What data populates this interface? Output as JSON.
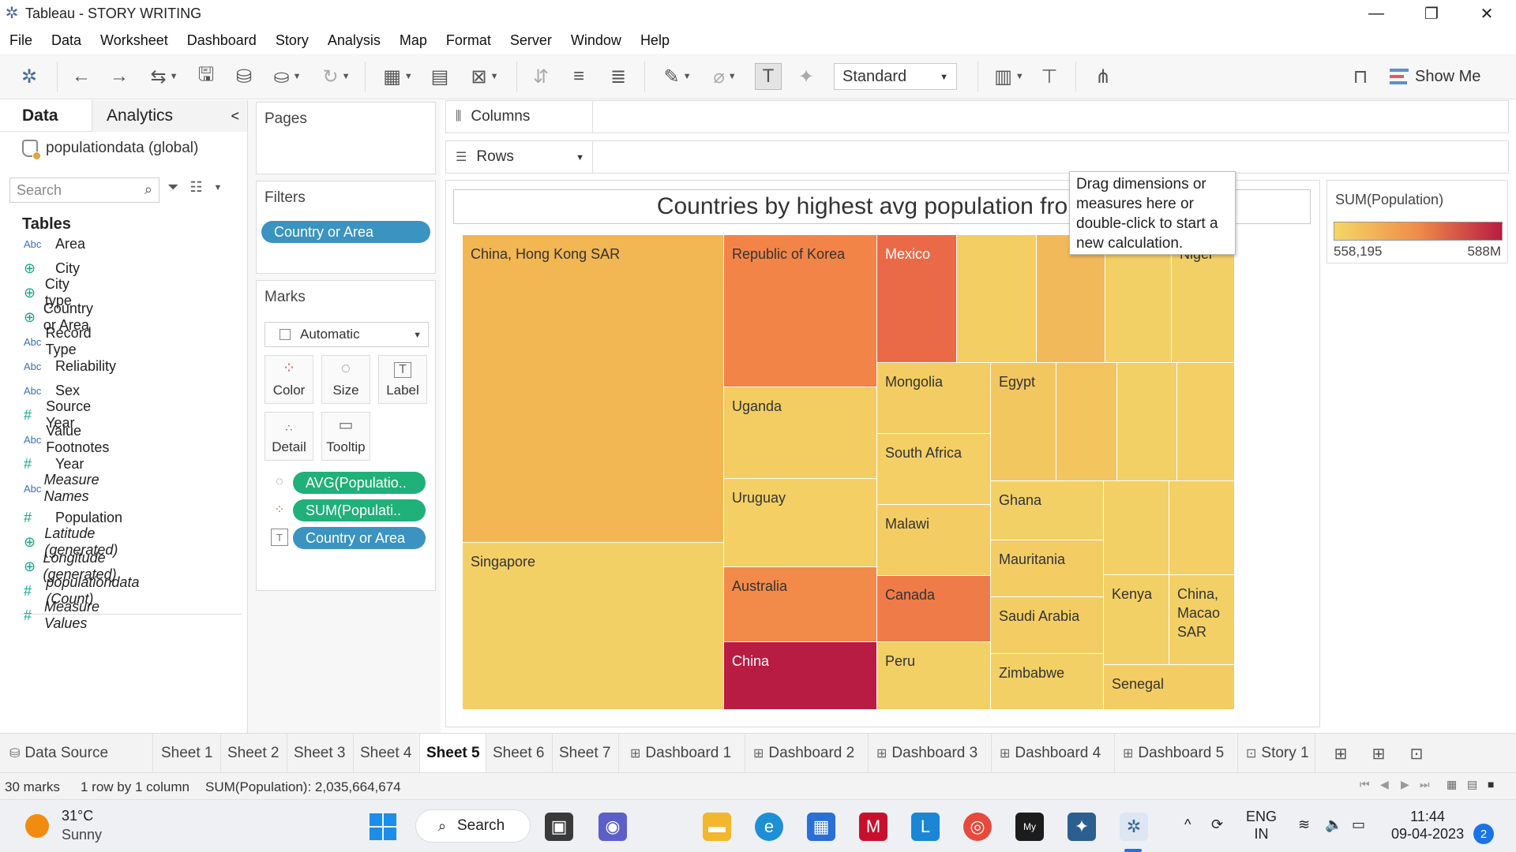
{
  "window": {
    "title": "Tableau - STORY WRITING",
    "minimize": "—",
    "maximize": "❐",
    "close": "✕"
  },
  "menu": [
    "File",
    "Data",
    "Worksheet",
    "Dashboard",
    "Story",
    "Analysis",
    "Map",
    "Format",
    "Server",
    "Window",
    "Help"
  ],
  "toolbar": {
    "fit_value": "Standard",
    "show_me": "Show Me"
  },
  "data_pane": {
    "tabs": [
      "Data",
      "Analytics"
    ],
    "collapse_icon": "<",
    "datasource": "populationdata (global)",
    "search_placeholder": "Search",
    "tables_heading": "Tables",
    "fields": [
      {
        "type": "Abc",
        "name": "Area"
      },
      {
        "type": "geo",
        "name": "City"
      },
      {
        "type": "geo",
        "name": "City type"
      },
      {
        "type": "geo",
        "name": "Country or Area"
      },
      {
        "type": "Abc",
        "name": "Record Type"
      },
      {
        "type": "Abc",
        "name": "Reliability"
      },
      {
        "type": "Abc",
        "name": "Sex"
      },
      {
        "type": "#",
        "name": "Source Year"
      },
      {
        "type": "Abc",
        "name": "Value Footnotes"
      },
      {
        "type": "#",
        "name": "Year"
      },
      {
        "type": "Abc",
        "name": "Measure Names",
        "italic": true
      },
      {
        "type": "#",
        "name": "Population"
      },
      {
        "type": "geo",
        "name": "Latitude (generated)",
        "italic": true
      },
      {
        "type": "geo",
        "name": "Longitude (generated)",
        "italic": true
      },
      {
        "type": "#",
        "name": "populationdata (Count)",
        "italic": true
      },
      {
        "type": "#",
        "name": "Measure Values",
        "italic": true
      }
    ]
  },
  "cards": {
    "pages": "Pages",
    "filters": "Filters",
    "filter_pill": "Country or Area",
    "marks": "Marks",
    "mark_type": "Automatic",
    "mark_buttons": [
      "Color",
      "Size",
      "Label",
      "Detail",
      "Tooltip"
    ],
    "mark_pills": [
      "AVG(Populatio..",
      "SUM(Populati..",
      "Country or Area"
    ]
  },
  "shelves": {
    "columns": "Columns",
    "rows": "Rows"
  },
  "viz": {
    "title": "Countries by highest avg population from 2",
    "tooltip": "Drag dimensions or measures here or double-click to start a new calculation.",
    "labels": {
      "hk": "China, Hong Kong SAR",
      "korea": "Republic of Korea",
      "mexico": "Mexico",
      "niger": "Niger",
      "singapore": "Singapore",
      "uganda": "Uganda",
      "uruguay": "Uruguay",
      "australia": "Australia",
      "china": "China",
      "mongolia": "Mongolia",
      "south_africa": "South Africa",
      "malawi": "Malawi",
      "canada": "Canada",
      "peru": "Peru",
      "egypt": "Egypt",
      "ghana": "Ghana",
      "mauritania": "Mauritania",
      "saudi": "Saudi Arabia",
      "zimbabwe": "Zimbabwe",
      "kenya": "Kenya",
      "macao": "China,\nMacao\nSAR",
      "senegal": "Senegal"
    },
    "colors": {
      "low": "#f5d766",
      "mid": "#ef8c4a",
      "high": "#b81c42"
    }
  },
  "legend": {
    "title": "SUM(Population)",
    "min": "558,195",
    "max": "588M"
  },
  "sheet_tabs": [
    {
      "icon": "data-source-icon",
      "label": "Data Source"
    },
    {
      "label": "Sheet 1"
    },
    {
      "label": "Sheet 2"
    },
    {
      "label": "Sheet 3"
    },
    {
      "label": "Sheet 4"
    },
    {
      "label": "Sheet 5",
      "active": true
    },
    {
      "label": "Sheet 6"
    },
    {
      "label": "Sheet 7"
    },
    {
      "icon": "dashboard-icon",
      "label": "Dashboard 1"
    },
    {
      "icon": "dashboard-icon",
      "label": "Dashboard 2"
    },
    {
      "icon": "dashboard-icon",
      "label": "Dashboard 3"
    },
    {
      "icon": "dashboard-icon",
      "label": "Dashboard 4"
    },
    {
      "icon": "dashboard-icon",
      "label": "Dashboard 5"
    },
    {
      "icon": "story-icon",
      "label": "Story 1"
    }
  ],
  "status": {
    "marks": "30 marks",
    "grid": "1 row by 1 column",
    "sum": "SUM(Population): 2,035,664,674"
  },
  "taskbar": {
    "temp": "31°C",
    "condition": "Sunny",
    "search": "Search",
    "lang1": "ENG",
    "lang2": "IN",
    "time": "11:44",
    "date": "09-04-2023",
    "notifications": "2"
  }
}
